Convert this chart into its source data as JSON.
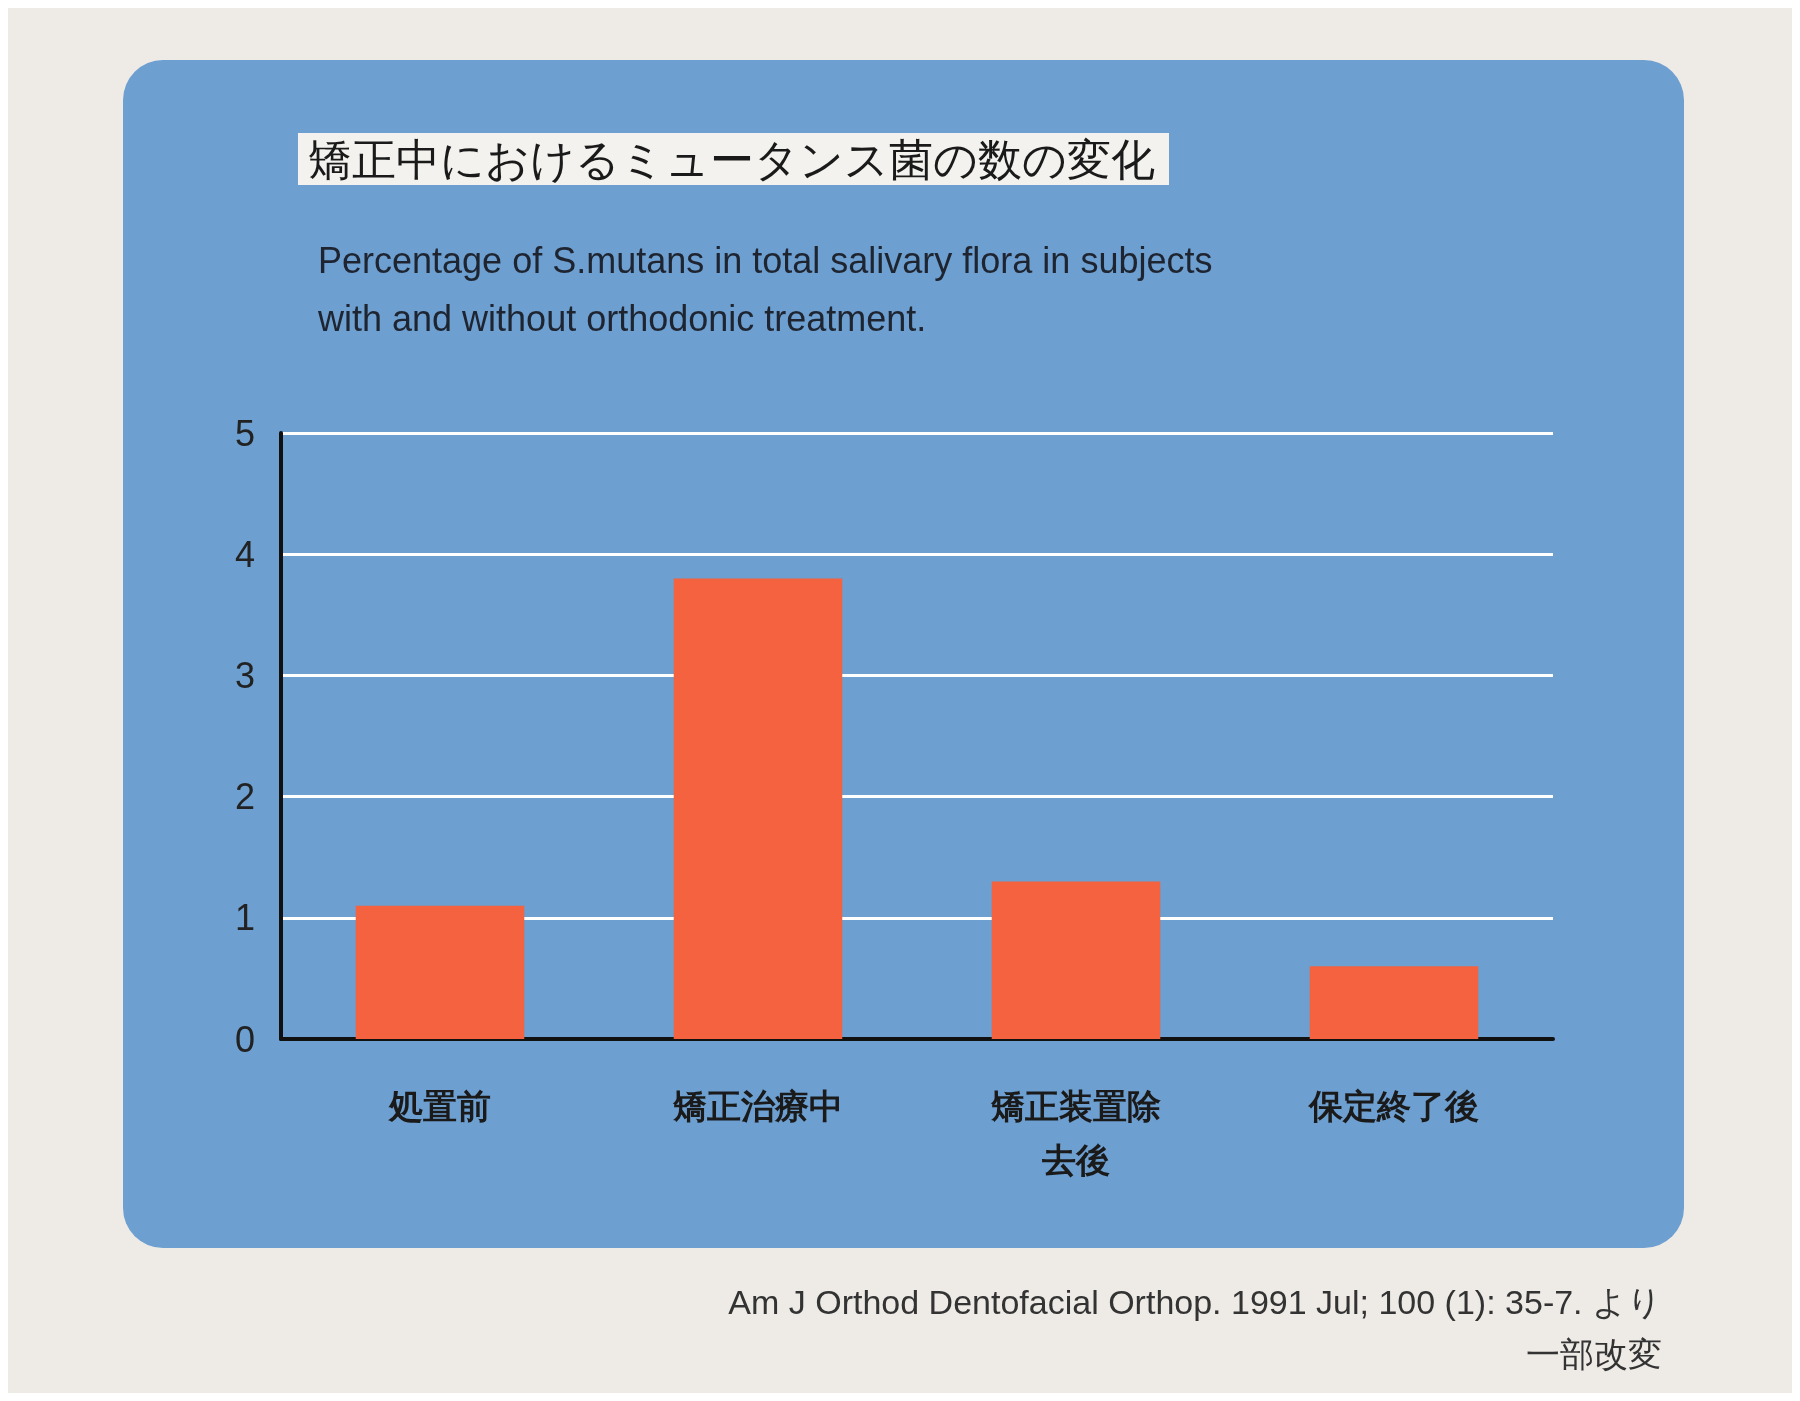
{
  "chart_data": {
    "type": "bar",
    "title": "矯正中におけるミュータンス菌の数の変化",
    "subtitle": "Percentage of S.mutans in total salivary flora in subjects with and without orthodonic treatment.",
    "categories": [
      "処置前",
      "矯正治療中",
      "矯正装置除去後",
      "保定終了後"
    ],
    "values": [
      1.1,
      3.8,
      1.3,
      0.6
    ],
    "color": "#f4623f",
    "ylim": [
      0,
      5
    ],
    "yticks": [
      0,
      1,
      2,
      3,
      4,
      5
    ],
    "grid": "y",
    "annotations": [
      "Am J Orthod Dentofacial Orthop. 1991 Jul; 100 (1): 35-7. より",
      "一部改変"
    ]
  }
}
